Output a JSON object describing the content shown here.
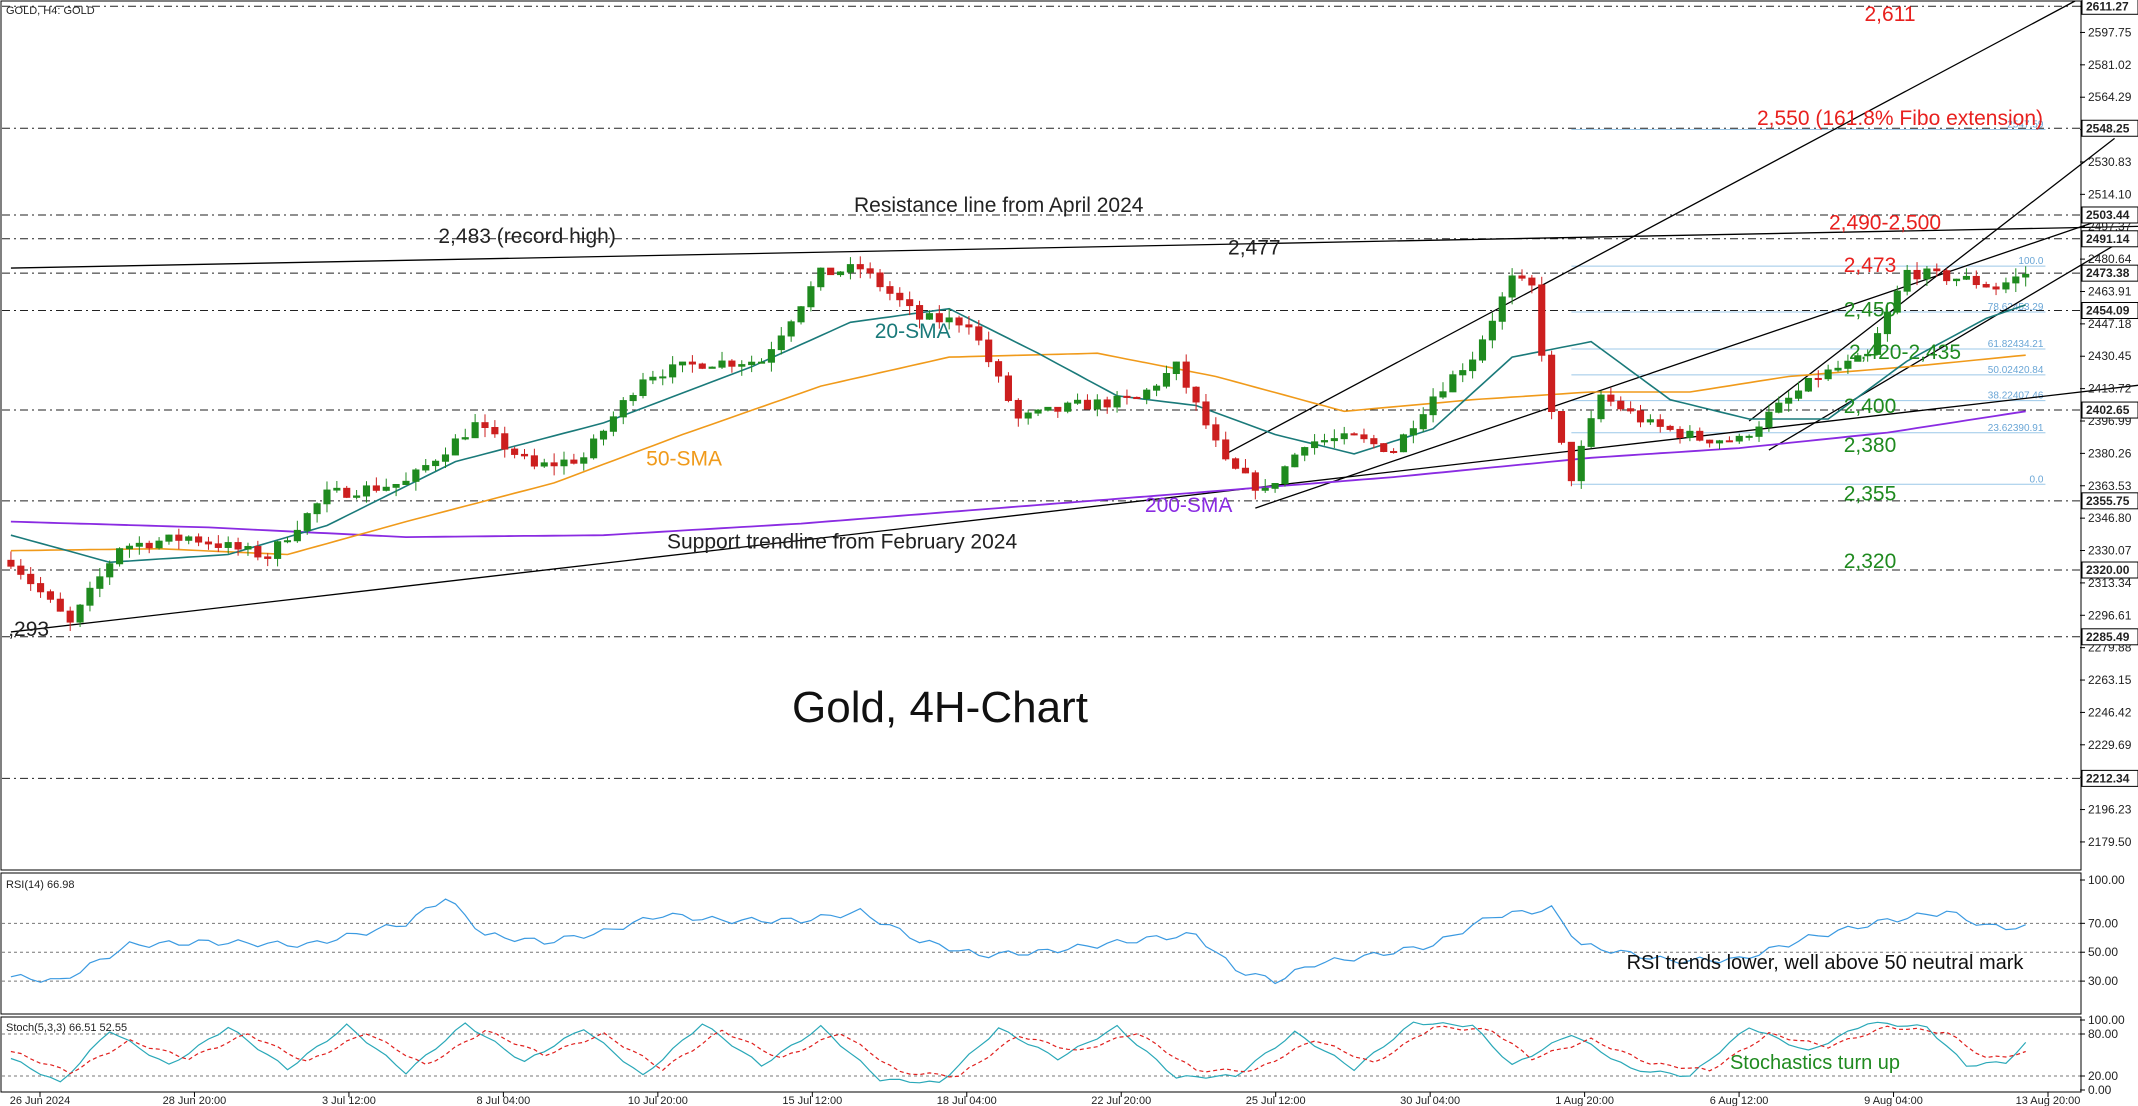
{
  "chart_data": {
    "type": "candlestick",
    "header": "GOLD, H4:  GOLD",
    "title": "Gold, 4H-Chart",
    "ylim": [
      2165,
      2614
    ],
    "y_tick_labels": [
      "2611.27",
      "2597.75",
      "2581.02",
      "2564.29",
      "2547.56",
      "2530.83",
      "2514.10",
      "2497.37",
      "2480.64",
      "2463.91",
      "2447.18",
      "2430.45",
      "2413.72",
      "2396.99",
      "2380.26",
      "2363.53",
      "2346.80",
      "2330.07",
      "2313.34",
      "2296.61",
      "2279.88",
      "2263.15",
      "2246.42",
      "2229.69",
      "2212.96",
      "2196.23",
      "2179.50"
    ],
    "x_tick_labels": [
      "26 Jun 2024",
      "28 Jun 20:00",
      "3 Jul 12:00",
      "8 Jul 04:00",
      "10 Jul 20:00",
      "15 Jul 12:00",
      "18 Jul 04:00",
      "22 Jul 20:00",
      "25 Jul 12:00",
      "30 Jul 04:00",
      "1 Aug 20:00",
      "6 Aug 12:00",
      "9 Aug 04:00",
      "13 Aug 20:00"
    ],
    "price_marks": [
      {
        "value": 2611.27,
        "label": "2611.27"
      },
      {
        "value": 2548.25,
        "label": "2548.25"
      },
      {
        "value": 2503.44,
        "label": "2503.44"
      },
      {
        "value": 2491.14,
        "label": "2491.14"
      },
      {
        "value": 2473.38,
        "label": "2473.38"
      },
      {
        "value": 2454.09,
        "label": "2454.09"
      },
      {
        "value": 2402.65,
        "label": "2402.65"
      },
      {
        "value": 2355.75,
        "label": "2355.75"
      },
      {
        "value": 2320.0,
        "label": "2320.00"
      },
      {
        "value": 2285.49,
        "label": "2285.49"
      },
      {
        "value": 2212.34,
        "label": "2212.34"
      }
    ],
    "key_levels": [
      {
        "label": "2,611",
        "value": 2611,
        "color": "#e8201e"
      },
      {
        "label": "2,550 (161.8% Fibo extension)",
        "value": 2550,
        "color": "#e8201e"
      },
      {
        "label": "2,490-2,500",
        "value": 2495,
        "color": "#e8201e"
      },
      {
        "label": "2,473",
        "value": 2473,
        "color": "#e8201e"
      },
      {
        "label": "2,450",
        "value": 2450,
        "color": "#1f8a1f"
      },
      {
        "label": "2,420-2,435",
        "value": 2428,
        "color": "#1f8a1f"
      },
      {
        "label": "2,400",
        "value": 2400,
        "color": "#1f8a1f"
      },
      {
        "label": "2,380",
        "value": 2380,
        "color": "#1f8a1f"
      },
      {
        "label": "2,355",
        "value": 2355,
        "color": "#1f8a1f"
      },
      {
        "label": "2,320",
        "value": 2320,
        "color": "#1f8a1f"
      }
    ],
    "fibo_levels": [
      {
        "label": "100.0",
        "value": 2477
      },
      {
        "label": "78.62453.29",
        "value": 2453.3
      },
      {
        "label": "61.82434.21",
        "value": 2434.2
      },
      {
        "label": "50.02420.84",
        "value": 2420.8
      },
      {
        "label": "38.22407.46",
        "value": 2407.5
      },
      {
        "label": "23.62390.91",
        "value": 2390.9
      },
      {
        "label": "0.0",
        "value": 2364.3
      },
      {
        "label": "2547.59",
        "value": 2547.6
      }
    ],
    "annotations": [
      {
        "id": "resistance",
        "text": "Resistance line from April 2024",
        "x": 0.41,
        "y": 2505,
        "color": "#222222"
      },
      {
        "id": "record",
        "text": "2,483 (record high)",
        "x": 0.21,
        "y": 2489,
        "color": "#222222"
      },
      {
        "id": "peak",
        "text": "2,477",
        "x": 0.59,
        "y": 2483,
        "color": "#222222"
      },
      {
        "id": "sma20",
        "text": "20-SMA",
        "x": 0.42,
        "y": 2440,
        "color": "#1a7a7a"
      },
      {
        "id": "sma50",
        "text": "50-SMA",
        "x": 0.31,
        "y": 2374,
        "color": "#f09a1a"
      },
      {
        "id": "sma200",
        "text": "200-SMA",
        "x": 0.55,
        "y": 2350,
        "color": "#8a2be2"
      },
      {
        "id": "support",
        "text": "Support trendline from February 2024",
        "x": 0.32,
        "y": 2331,
        "color": "#222222"
      },
      {
        "id": "low",
        "text": ",293",
        "x": 0.003,
        "y": 2286,
        "color": "#222222"
      }
    ],
    "candles": [],
    "candle_count": 246,
    "candle_path": [
      [
        0,
        2325,
        2325
      ],
      [
        6,
        2292,
        2292
      ],
      [
        11,
        2332,
        2332
      ],
      [
        18,
        2337,
        2337
      ],
      [
        26,
        2327,
        2327
      ],
      [
        32,
        2359,
        2359
      ],
      [
        40,
        2365,
        2365
      ],
      [
        47,
        2395,
        2395
      ],
      [
        53,
        2373,
        2373
      ],
      [
        58,
        2378,
        2378
      ],
      [
        64,
        2420,
        2420
      ],
      [
        70,
        2427,
        2427
      ],
      [
        76,
        2428,
        2428
      ],
      [
        82,
        2473,
        2473
      ],
      [
        86,
        2476,
        2476
      ],
      [
        92,
        2450,
        2450
      ],
      [
        97,
        2448,
        2448
      ],
      [
        102,
        2398,
        2398
      ],
      [
        108,
        2405,
        2405
      ],
      [
        114,
        2408,
        2408
      ],
      [
        118,
        2425,
        2425
      ],
      [
        123,
        2375,
        2375
      ],
      [
        127,
        2360,
        2360
      ],
      [
        131,
        2386,
        2386
      ],
      [
        136,
        2388,
        2388
      ],
      [
        140,
        2382,
        2382
      ],
      [
        144,
        2410,
        2410
      ],
      [
        148,
        2430,
        2430
      ],
      [
        152,
        2470,
        2470
      ],
      [
        154,
        2466,
        2466
      ],
      [
        156,
        2400,
        2400
      ],
      [
        158,
        2368,
        2368
      ],
      [
        161,
        2410,
        2410
      ],
      [
        166,
        2395,
        2395
      ],
      [
        171,
        2388,
        2388
      ],
      [
        175,
        2387,
        2387
      ],
      [
        178,
        2400,
        2400
      ],
      [
        183,
        2420,
        2420
      ],
      [
        188,
        2430,
        2430
      ],
      [
        192,
        2474,
        2474
      ],
      [
        198,
        2470,
        2470
      ],
      [
        201,
        2466,
        2466
      ],
      [
        204,
        2473,
        2473
      ]
    ],
    "sma20": [
      [
        0,
        2338
      ],
      [
        10,
        2324
      ],
      [
        22,
        2328
      ],
      [
        32,
        2343
      ],
      [
        45,
        2376
      ],
      [
        60,
        2396
      ],
      [
        75,
        2425
      ],
      [
        85,
        2448
      ],
      [
        95,
        2455
      ],
      [
        104,
        2432
      ],
      [
        112,
        2410
      ],
      [
        120,
        2405
      ],
      [
        128,
        2390
      ],
      [
        136,
        2380
      ],
      [
        144,
        2393
      ],
      [
        152,
        2430
      ],
      [
        160,
        2438
      ],
      [
        168,
        2408
      ],
      [
        176,
        2398
      ],
      [
        184,
        2398
      ],
      [
        192,
        2428
      ],
      [
        200,
        2450
      ],
      [
        204,
        2457
      ]
    ],
    "sma50": [
      [
        0,
        2330
      ],
      [
        15,
        2331
      ],
      [
        28,
        2328
      ],
      [
        40,
        2345
      ],
      [
        55,
        2365
      ],
      [
        68,
        2390
      ],
      [
        82,
        2415
      ],
      [
        95,
        2430
      ],
      [
        110,
        2432
      ],
      [
        122,
        2420
      ],
      [
        135,
        2402
      ],
      [
        148,
        2408
      ],
      [
        160,
        2412
      ],
      [
        170,
        2412
      ],
      [
        180,
        2420
      ],
      [
        192,
        2425
      ],
      [
        204,
        2431
      ]
    ],
    "sma200": [
      [
        0,
        2345
      ],
      [
        20,
        2342
      ],
      [
        40,
        2337
      ],
      [
        60,
        2338
      ],
      [
        80,
        2344
      ],
      [
        100,
        2352
      ],
      [
        120,
        2360
      ],
      [
        140,
        2368
      ],
      [
        160,
        2378
      ],
      [
        175,
        2383
      ],
      [
        190,
        2391
      ],
      [
        204,
        2402
      ]
    ],
    "trendlines": [
      {
        "id": "resistance-line",
        "points": [
          [
            0,
            2476
          ],
          [
            240,
            2500
          ]
        ],
        "color": "#000000"
      },
      {
        "id": "support-line",
        "points": [
          [
            0,
            2288
          ],
          [
            240,
            2430
          ]
        ],
        "color": "#000000"
      },
      {
        "id": "channel-upper-1",
        "points": [
          [
            123,
            2380
          ],
          [
            209,
            2614
          ]
        ],
        "color": "#000000"
      },
      {
        "id": "channel-lower-1",
        "points": [
          [
            126,
            2352
          ],
          [
            218,
            2512
          ]
        ],
        "color": "#000000"
      },
      {
        "id": "channel-upper-2",
        "points": [
          [
            176,
            2397
          ],
          [
            213,
            2543
          ]
        ],
        "color": "#000000"
      },
      {
        "id": "channel-lower-2",
        "points": [
          [
            178,
            2382
          ],
          [
            219,
            2506
          ]
        ],
        "color": "#000000"
      }
    ],
    "rsi": {
      "label": "RSI(14) 66.98",
      "ylim": [
        10,
        100
      ],
      "tick_labels": [
        "100.00",
        "70.00",
        "50.00",
        "30.00"
      ],
      "ticks": [
        100,
        70,
        50,
        30
      ],
      "guide_lines": [
        70,
        50,
        30
      ],
      "note": "RSI trends lower, well above 50 neutral mark",
      "path": [
        [
          0,
          33
        ],
        [
          5,
          30
        ],
        [
          12,
          55
        ],
        [
          20,
          57
        ],
        [
          30,
          55
        ],
        [
          40,
          70
        ],
        [
          44,
          88
        ],
        [
          48,
          62
        ],
        [
          54,
          57
        ],
        [
          60,
          64
        ],
        [
          66,
          76
        ],
        [
          72,
          72
        ],
        [
          80,
          72
        ],
        [
          86,
          78
        ],
        [
          92,
          58
        ],
        [
          98,
          48
        ],
        [
          104,
          50
        ],
        [
          110,
          55
        ],
        [
          116,
          60
        ],
        [
          120,
          62
        ],
        [
          124,
          38
        ],
        [
          128,
          30
        ],
        [
          132,
          42
        ],
        [
          138,
          48
        ],
        [
          144,
          55
        ],
        [
          150,
          75
        ],
        [
          156,
          80
        ],
        [
          159,
          55
        ],
        [
          163,
          50
        ],
        [
          168,
          44
        ],
        [
          175,
          45
        ],
        [
          182,
          60
        ],
        [
          190,
          72
        ],
        [
          196,
          78
        ],
        [
          200,
          68
        ],
        [
          204,
          67
        ]
      ]
    },
    "stoch": {
      "label": "Stoch(5,3,3) 66.51 52.55",
      "ylim": [
        0,
        100
      ],
      "tick_labels": [
        "100.00",
        "80.00",
        "20.00",
        "0.00"
      ],
      "ticks": [
        100,
        80,
        20,
        0
      ],
      "guide_lines": [
        80,
        20
      ],
      "note": "Stochastics turn up",
      "k": [
        [
          0,
          45
        ],
        [
          5,
          10
        ],
        [
          10,
          85
        ],
        [
          16,
          35
        ],
        [
          22,
          90
        ],
        [
          28,
          30
        ],
        [
          34,
          92
        ],
        [
          40,
          25
        ],
        [
          46,
          95
        ],
        [
          52,
          40
        ],
        [
          58,
          88
        ],
        [
          64,
          20
        ],
        [
          70,
          95
        ],
        [
          76,
          35
        ],
        [
          82,
          90
        ],
        [
          88,
          15
        ],
        [
          94,
          10
        ],
        [
          100,
          88
        ],
        [
          106,
          45
        ],
        [
          112,
          90
        ],
        [
          118,
          18
        ],
        [
          124,
          20
        ],
        [
          130,
          82
        ],
        [
          136,
          30
        ],
        [
          142,
          96
        ],
        [
          148,
          92
        ],
        [
          152,
          35
        ],
        [
          158,
          80
        ],
        [
          164,
          30
        ],
        [
          170,
          20
        ],
        [
          176,
          90
        ],
        [
          182,
          55
        ],
        [
          188,
          96
        ],
        [
          194,
          90
        ],
        [
          198,
          35
        ],
        [
          202,
          40
        ],
        [
          204,
          66
        ]
      ],
      "d": [
        [
          0,
          55
        ],
        [
          6,
          25
        ],
        [
          12,
          70
        ],
        [
          18,
          45
        ],
        [
          24,
          80
        ],
        [
          30,
          40
        ],
        [
          36,
          82
        ],
        [
          42,
          35
        ],
        [
          48,
          85
        ],
        [
          54,
          50
        ],
        [
          60,
          80
        ],
        [
          66,
          30
        ],
        [
          72,
          85
        ],
        [
          78,
          45
        ],
        [
          84,
          82
        ],
        [
          90,
          25
        ],
        [
          96,
          20
        ],
        [
          102,
          78
        ],
        [
          108,
          55
        ],
        [
          114,
          82
        ],
        [
          120,
          28
        ],
        [
          126,
          28
        ],
        [
          132,
          72
        ],
        [
          138,
          38
        ],
        [
          144,
          90
        ],
        [
          150,
          85
        ],
        [
          154,
          45
        ],
        [
          160,
          72
        ],
        [
          166,
          38
        ],
        [
          172,
          28
        ],
        [
          178,
          80
        ],
        [
          184,
          62
        ],
        [
          190,
          90
        ],
        [
          196,
          82
        ],
        [
          200,
          45
        ],
        [
          204,
          53
        ]
      ]
    }
  },
  "colors": {
    "bull": "#1f8a1f",
    "bear": "#cc1f1f",
    "sma20": "#1a7a7a",
    "sma50": "#f09a1a",
    "sma200": "#8a2be2",
    "rsi": "#3b9ae1",
    "stoch_k": "#2aa8b8",
    "stoch_d": "#e0201e",
    "grid": "#888888",
    "fibo": "#9cc8e8"
  }
}
